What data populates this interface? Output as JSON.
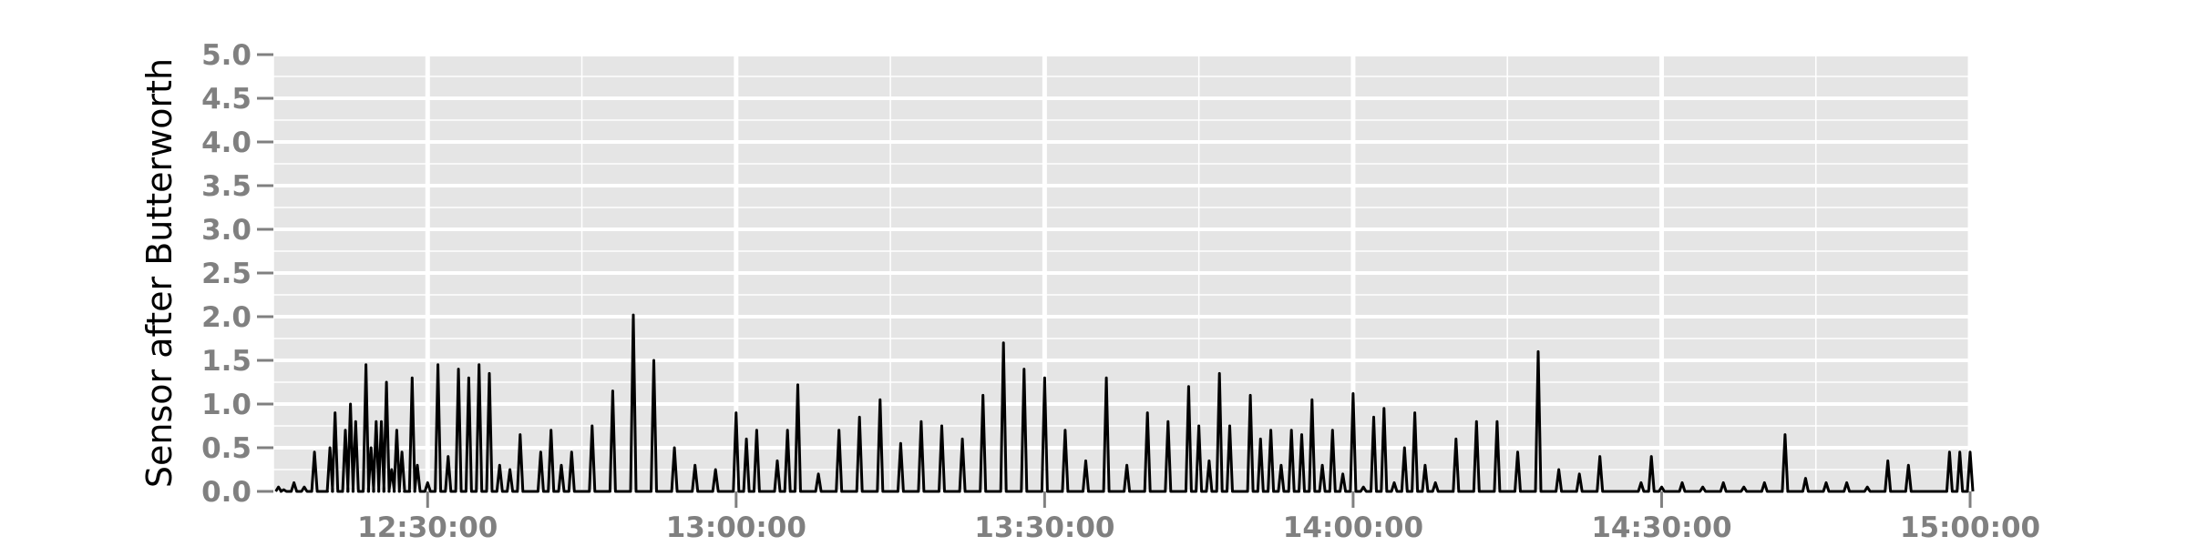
{
  "chart_data": {
    "type": "line",
    "title": "",
    "xlabel": "",
    "ylabel": "Sensor after Butterworth",
    "ylim": [
      0,
      5
    ],
    "xlim": [
      "12:15:00",
      "15:00:00"
    ],
    "grid": true,
    "colors": {
      "background": "#e5e5e5",
      "grid": "#ffffff",
      "line": "#000000",
      "ticks": "#808080"
    },
    "y_ticks": [
      "0.0",
      "0.5",
      "1.0",
      "1.5",
      "2.0",
      "2.5",
      "3.0",
      "3.5",
      "4.0",
      "4.5",
      "5.0"
    ],
    "x_ticks": [
      "12:30:00",
      "13:00:00",
      "13:30:00",
      "14:00:00",
      "14:30:00",
      "15:00:00"
    ],
    "series": [
      {
        "x": [
          "12:15:30",
          "12:16:00",
          "12:17:00",
          "12:18:00",
          "12:19:00",
          "12:20:00",
          "12:20:30",
          "12:21:00",
          "12:22:00",
          "12:22:30",
          "12:23:00",
          "12:24:00",
          "12:24:30",
          "12:25:00",
          "12:25:30",
          "12:26:00",
          "12:26:30",
          "12:27:00",
          "12:27:30",
          "12:28:00",
          "12:28:30",
          "12:29:00",
          "12:30:00",
          "12:31:00",
          "12:32:00",
          "12:33:00",
          "12:34:00",
          "12:35:00",
          "12:36:00",
          "12:37:00",
          "12:38:00",
          "12:39:00",
          "12:40:00",
          "12:41:00",
          "12:42:00",
          "12:43:00",
          "12:44:00",
          "12:45:00",
          "12:46:00",
          "12:48:00",
          "12:50:00",
          "12:52:00",
          "12:54:00",
          "12:56:00",
          "12:58:00",
          "13:00:00",
          "13:01:00",
          "13:02:00",
          "13:03:00",
          "13:04:00",
          "13:05:00",
          "13:06:00",
          "13:08:00",
          "13:10:00",
          "13:12:00",
          "13:14:00",
          "13:16:00",
          "13:18:00",
          "13:20:00",
          "13:22:00",
          "13:24:00",
          "13:26:00",
          "13:28:00",
          "13:30:00",
          "13:32:00",
          "13:34:00",
          "13:36:00",
          "13:38:00",
          "13:40:00",
          "13:42:00",
          "13:44:00",
          "13:45:00",
          "13:46:00",
          "13:47:00",
          "13:48:00",
          "13:49:00",
          "13:50:00",
          "13:51:00",
          "13:52:00",
          "13:53:00",
          "13:54:00",
          "13:55:00",
          "13:56:00",
          "13:57:00",
          "13:58:00",
          "13:59:00",
          "14:00:00",
          "14:01:00",
          "14:02:00",
          "14:03:00",
          "14:04:00",
          "14:05:00",
          "14:06:00",
          "14:07:00",
          "14:08:00",
          "14:09:00",
          "14:10:00",
          "14:12:00",
          "14:14:00",
          "14:16:00",
          "14:18:00",
          "14:20:00",
          "14:22:00",
          "14:24:00",
          "14:26:00",
          "14:28:00",
          "14:29:00",
          "14:30:00",
          "14:32:00",
          "14:34:00",
          "14:36:00",
          "14:38:00",
          "14:40:00",
          "14:42:00",
          "14:44:00",
          "14:46:00",
          "14:48:00",
          "14:50:00",
          "14:52:00",
          "14:54:00",
          "14:56:00",
          "14:58:00",
          "14:59:00",
          "15:00:00"
        ],
        "values": [
          0.05,
          0.02,
          0.1,
          0.05,
          0.45,
          0.0,
          0.5,
          0.9,
          0.7,
          1.0,
          0.8,
          1.45,
          0.5,
          0.8,
          0.8,
          1.25,
          0.25,
          0.7,
          0.45,
          0.0,
          1.3,
          0.3,
          0.1,
          1.45,
          0.4,
          1.4,
          1.3,
          1.45,
          1.35,
          0.3,
          0.25,
          0.65,
          0.0,
          0.45,
          0.7,
          0.3,
          0.45,
          0.0,
          0.75,
          1.15,
          2.02,
          1.5,
          0.5,
          0.3,
          0.25,
          0.9,
          0.6,
          0.7,
          0.0,
          0.35,
          0.7,
          1.22,
          0.2,
          0.7,
          0.85,
          1.05,
          0.55,
          0.8,
          0.75,
          0.6,
          1.1,
          1.7,
          1.4,
          1.3,
          0.7,
          0.35,
          1.3,
          0.3,
          0.9,
          0.8,
          1.2,
          0.75,
          0.35,
          1.35,
          0.75,
          0.0,
          1.1,
          0.6,
          0.7,
          0.3,
          0.7,
          0.65,
          1.05,
          0.3,
          0.7,
          0.2,
          1.12,
          0.05,
          0.85,
          0.95,
          0.1,
          0.5,
          0.9,
          0.3,
          0.1,
          0.0,
          0.6,
          0.8,
          0.8,
          0.45,
          1.6,
          0.25,
          0.2,
          0.4,
          0.0,
          0.1,
          0.4,
          0.05,
          0.1,
          0.05,
          0.1,
          0.05,
          0.1,
          0.65,
          0.15,
          0.1,
          0.1,
          0.05,
          0.35,
          0.3,
          0.0,
          0.45,
          0.45,
          0.45
        ]
      }
    ]
  }
}
